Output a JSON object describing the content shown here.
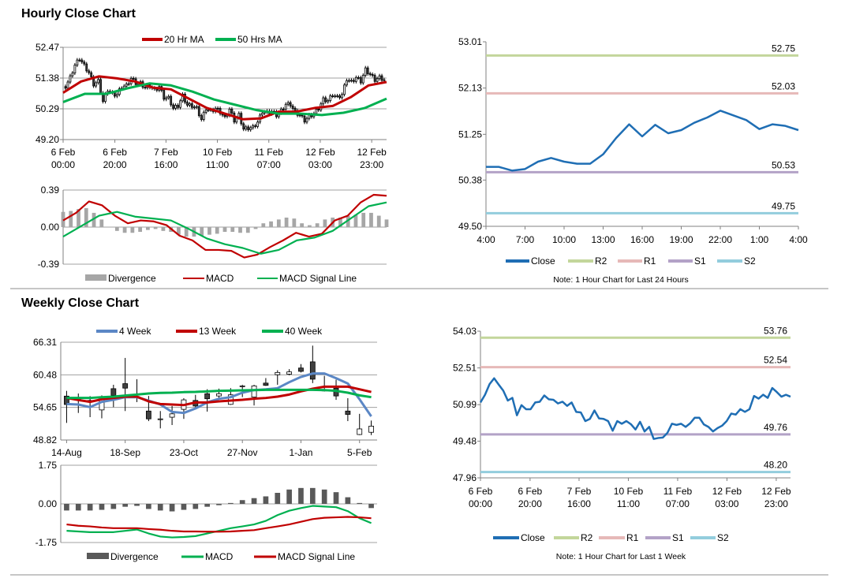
{
  "sections": {
    "hourly_title": "Hourly Close Chart",
    "weekly_title": "Weekly Close Chart"
  },
  "colors": {
    "ma20": "#c00000",
    "ma50": "#00b050",
    "macd_red": "#c00000",
    "macd_green": "#00b050",
    "divergence_light": "#a6a6a6",
    "divergence_dark": "#595959",
    "week4": "#5b87c5",
    "close": "#1f6eb4",
    "R2": "#c3d69b",
    "R1": "#e6b9b8",
    "S1": "#b3a2c7",
    "S2": "#93cddd",
    "grid": "#a0a0a0",
    "candle_down": "#404040",
    "candle_up": "#ffffff"
  },
  "chart_data": [
    {
      "id": "hourly_candles",
      "type": "candlestick",
      "legend": [
        "20 Hr MA",
        "50 Hrs MA"
      ],
      "legend_placement": "top",
      "grid": true,
      "ylim": [
        49.2,
        52.47
      ],
      "yticks": [
        "52.47",
        "51.38",
        "50.29",
        "49.20"
      ],
      "xtick_labels": [
        [
          "6 Feb",
          "00:00"
        ],
        [
          "6 Feb",
          "20:00"
        ],
        [
          "7 Feb",
          "16:00"
        ],
        [
          "10 Feb",
          "11:00"
        ],
        [
          "11 Feb",
          "07:00"
        ],
        [
          "12 Feb",
          "03:00"
        ],
        [
          "12 Feb",
          "23:00"
        ]
      ],
      "close": [
        51.08,
        51.4,
        51.84,
        52.08,
        51.82,
        51.57,
        51.16,
        51.27,
        50.55,
        50.97,
        50.8,
        50.8,
        51.08,
        51.11,
        51.37,
        51.21,
        51.19,
        51.04,
        51.11,
        50.94,
        51.08,
        50.69,
        50.67,
        50.31,
        50.4,
        50.75,
        50.42,
        50.4,
        50.31,
        49.91,
        50.31,
        50.2,
        50.31,
        50.18,
        49.96,
        50.28,
        49.88,
        50.07,
        49.57,
        49.61,
        49.63,
        49.82,
        50.2,
        50.15,
        50.2,
        50.07,
        50.22,
        50.45,
        50.45,
        50.17,
        50.07,
        49.88,
        50.02,
        50.12,
        50.31,
        50.62,
        50.58,
        50.8,
        50.69,
        50.8,
        51.35,
        51.24,
        51.4,
        51.27,
        51.68,
        51.51,
        51.32,
        51.4,
        51.32
      ],
      "series": [
        {
          "name": "20 Hr MA",
          "values": [
            50.86,
            51.26,
            51.44,
            51.37,
            51.26,
            51.04,
            50.98,
            50.65,
            50.32,
            50.12,
            49.92,
            49.95,
            50.19,
            50.19,
            50.32,
            50.39,
            50.7,
            51.12,
            51.24
          ]
        },
        {
          "name": "50 Hrs MA",
          "values": [
            50.53,
            50.82,
            50.82,
            51.02,
            51.19,
            51.12,
            50.9,
            50.62,
            50.43,
            50.24,
            50.12,
            50.12,
            50.07,
            50.15,
            50.32,
            50.65
          ]
        }
      ]
    },
    {
      "id": "hourly_macd",
      "type": "line+bar",
      "legend": [
        "Divergence",
        "MACD",
        "MACD Signal Line"
      ],
      "legend_placement": "bottom",
      "grid": true,
      "ylim": [
        -0.39,
        0.39
      ],
      "yticks": [
        "0.39",
        "0.00",
        "-0.39"
      ],
      "divergence": [
        0.16,
        0.17,
        0.19,
        0.2,
        0.15,
        0.08,
        0.0,
        -0.04,
        -0.06,
        -0.06,
        -0.05,
        -0.03,
        -0.02,
        -0.04,
        -0.05,
        -0.08,
        -0.1,
        -0.1,
        -0.09,
        -0.08,
        -0.07,
        -0.05,
        -0.05,
        -0.06,
        -0.06,
        -0.02,
        0.04,
        0.06,
        0.08,
        0.1,
        0.09,
        0.04,
        0.02,
        0.04,
        0.08,
        0.1,
        0.1,
        0.12,
        0.13,
        0.15,
        0.15,
        0.12,
        0.08
      ],
      "series": [
        {
          "name": "MACD",
          "values": [
            0.07,
            0.15,
            0.27,
            0.23,
            0.12,
            0.04,
            0.07,
            0.06,
            0.02,
            -0.09,
            -0.14,
            -0.24,
            -0.24,
            -0.25,
            -0.32,
            -0.29,
            -0.21,
            -0.14,
            -0.06,
            -0.1,
            -0.07,
            0.07,
            0.12,
            0.26,
            0.34,
            0.33
          ]
        },
        {
          "name": "MACD Signal Line",
          "values": [
            -0.1,
            0.01,
            0.12,
            0.16,
            0.11,
            0.09,
            0.07,
            -0.02,
            -0.12,
            -0.18,
            -0.22,
            -0.28,
            -0.24,
            -0.14,
            -0.11,
            -0.04,
            0.09,
            0.22,
            0.26
          ]
        }
      ]
    },
    {
      "id": "day_levels",
      "type": "line",
      "legend": [
        "Close",
        "R2",
        "R1",
        "S1",
        "S2"
      ],
      "legend_placement": "bottom",
      "grid": false,
      "note": "Note: 1 Hour Chart for Last 24 Hours",
      "ylim": [
        49.5,
        53.01
      ],
      "yticks": [
        "53.01",
        "52.13",
        "51.25",
        "50.38",
        "49.50"
      ],
      "xtick_labels": [
        "4:00",
        "7:00",
        "10:00",
        "13:00",
        "16:00",
        "19:00",
        "22:00",
        "1:00",
        "4:00"
      ],
      "close": [
        50.63,
        50.63,
        50.56,
        50.59,
        50.73,
        50.8,
        50.73,
        50.69,
        50.69,
        50.87,
        51.18,
        51.44,
        51.21,
        51.43,
        51.27,
        51.33,
        51.47,
        51.57,
        51.7,
        51.61,
        51.52,
        51.35,
        51.44,
        51.41,
        51.33
      ],
      "levels": [
        {
          "name": "R2",
          "value": "52.75"
        },
        {
          "name": "R1",
          "value": "52.03"
        },
        {
          "name": "S1",
          "value": "50.53"
        },
        {
          "name": "S2",
          "value": "49.75"
        }
      ]
    },
    {
      "id": "weekly_candles",
      "type": "candlestick",
      "legend": [
        "4 Week",
        "13 Week",
        "40 Week"
      ],
      "legend_placement": "top",
      "grid": true,
      "ylim": [
        48.82,
        66.31
      ],
      "yticks": [
        "66.31",
        "60.48",
        "54.65",
        "48.82"
      ],
      "xtick_labels": [
        {
          "label": "14-Aug",
          "index": 0
        },
        {
          "label": "18-Sep",
          "index": 5
        },
        {
          "label": "23-Oct",
          "index": 10
        },
        {
          "label": "27-Nov",
          "index": 15
        },
        {
          "label": "1-Jan",
          "index": 20
        },
        {
          "label": "5-Feb",
          "index": 25
        }
      ],
      "ohlc": [
        [
          56.67,
          57.61,
          51.88,
          55.17
        ],
        [
          56.2,
          57.14,
          53.66,
          56.0
        ],
        [
          55.9,
          56.67,
          52.91,
          55.6
        ],
        [
          54.2,
          56.8,
          52.7,
          56.2
        ],
        [
          58.0,
          58.7,
          54.7,
          56.8
        ],
        [
          58.9,
          63.5,
          54.0,
          58.1
        ],
        [
          56.6,
          59.7,
          55.6,
          56.5
        ],
        [
          54.0,
          56.7,
          52.2,
          52.6
        ],
        [
          52.6,
          54.0,
          50.9,
          52.6
        ],
        [
          52.9,
          54.9,
          51.5,
          53.5
        ],
        [
          54.3,
          56.3,
          52.6,
          56.0
        ],
        [
          55.9,
          56.9,
          54.5,
          54.9
        ],
        [
          57.1,
          57.9,
          53.9,
          56.2
        ],
        [
          56.7,
          58.0,
          56.3,
          57.1
        ],
        [
          55.2,
          58.1,
          55.1,
          56.9
        ],
        [
          58.4,
          58.7,
          56.5,
          58.5
        ],
        [
          56.5,
          58.7,
          55.0,
          58.5
        ],
        [
          59.0,
          59.9,
          58.5,
          58.6
        ],
        [
          60.5,
          61.3,
          58.7,
          60.9
        ],
        [
          60.6,
          61.5,
          60.4,
          61.0
        ],
        [
          61.7,
          62.4,
          60.9,
          61.1
        ],
        [
          62.8,
          65.7,
          59.0,
          59.7
        ],
        [
          57.8,
          60.3,
          57.5,
          57.6
        ],
        [
          58.1,
          59.6,
          56.0,
          56.7
        ],
        [
          54.0,
          56.3,
          52.2,
          53.4
        ],
        [
          49.8,
          53.5,
          49.7,
          50.8
        ],
        [
          50.2,
          52.3,
          49.7,
          51.3
        ]
      ],
      "series": [
        {
          "name": "4 Week",
          "values": [
            55.26,
            55.17,
            54.7,
            55.64,
            56.01,
            56.48,
            56.48,
            55.87,
            55.17,
            53.85,
            53.66,
            54.46,
            55.54,
            56.2,
            56.48,
            57.28,
            57.75,
            57.89,
            58.08,
            59.16,
            60.1,
            60.72,
            60.72,
            59.87,
            58.93,
            56.11,
            53.05
          ]
        },
        {
          "name": "13 Week",
          "values": [
            56.34,
            55.97,
            55.64,
            56.11,
            56.34,
            56.58,
            56.58,
            55.73,
            55.26,
            55.17,
            55.07,
            55.54,
            55.54,
            55.73,
            55.87,
            56.01,
            56.2,
            56.34,
            56.58,
            56.95,
            57.52,
            57.99,
            58.36,
            58.36,
            58.36,
            57.89,
            57.42
          ]
        },
        {
          "name": "40 Week",
          "values": [
            56.34,
            56.34,
            56.34,
            56.48,
            56.58,
            56.77,
            56.95,
            57.14,
            57.24,
            57.28,
            57.38,
            57.42,
            57.52,
            57.61,
            57.66,
            57.7,
            57.75,
            57.8,
            57.8,
            57.8,
            57.8,
            57.8,
            57.75,
            57.61,
            57.28,
            56.81,
            56.48
          ]
        }
      ]
    },
    {
      "id": "weekly_macd",
      "type": "line+bar",
      "legend": [
        "Divergence",
        "MACD",
        "MACD Signal Line"
      ],
      "legend_placement": "bottom",
      "grid": true,
      "ylim": [
        -1.75,
        1.75
      ],
      "yticks": [
        "1.75",
        "0.00",
        "-1.75"
      ],
      "divergence": [
        -0.3,
        -0.3,
        -0.3,
        -0.27,
        -0.23,
        -0.13,
        -0.09,
        -0.23,
        -0.3,
        -0.34,
        -0.27,
        -0.23,
        -0.13,
        -0.06,
        0.04,
        0.17,
        0.26,
        0.34,
        0.5,
        0.65,
        0.72,
        0.72,
        0.65,
        0.53,
        0.3,
        0.04,
        -0.19
      ],
      "series": [
        {
          "name": "MACD",
          "values": [
            -1.22,
            -1.25,
            -1.28,
            -1.28,
            -1.28,
            -1.22,
            -1.16,
            -1.34,
            -1.48,
            -1.52,
            -1.5,
            -1.46,
            -1.34,
            -1.22,
            -1.1,
            -1.02,
            -0.93,
            -0.77,
            -0.51,
            -0.31,
            -0.19,
            -0.09,
            -0.12,
            -0.15,
            -0.33,
            -0.65,
            -0.87
          ]
        },
        {
          "name": "MACD Signal Line",
          "values": [
            -0.93,
            -0.99,
            -1.02,
            -1.07,
            -1.1,
            -1.1,
            -1.1,
            -1.14,
            -1.17,
            -1.22,
            -1.25,
            -1.25,
            -1.26,
            -1.26,
            -1.25,
            -1.22,
            -1.19,
            -1.1,
            -1.02,
            -0.93,
            -0.81,
            -0.69,
            -0.63,
            -0.61,
            -0.59,
            -0.61,
            -0.65
          ]
        }
      ]
    },
    {
      "id": "week_levels",
      "type": "line",
      "legend": [
        "Close",
        "R2",
        "R1",
        "S1",
        "S2"
      ],
      "legend_placement": "bottom",
      "grid": false,
      "note": "Note: 1 Hour Chart for Last 1 Week",
      "ylim": [
        47.96,
        54.03
      ],
      "yticks": [
        "54.03",
        "52.51",
        "50.99",
        "49.48",
        "47.96"
      ],
      "xtick_labels": [
        [
          "6 Feb",
          "00:00"
        ],
        [
          "6 Feb",
          "20:00"
        ],
        [
          "7 Feb",
          "16:00"
        ],
        [
          "10 Feb",
          "11:00"
        ],
        [
          "11 Feb",
          "07:00"
        ],
        [
          "12 Feb",
          "03:00"
        ],
        [
          "12 Feb",
          "23:00"
        ]
      ],
      "close": [
        51.08,
        51.4,
        51.84,
        52.08,
        51.82,
        51.57,
        51.16,
        51.27,
        50.55,
        50.97,
        50.8,
        50.8,
        51.08,
        51.11,
        51.37,
        51.21,
        51.19,
        51.04,
        51.11,
        50.94,
        51.08,
        50.69,
        50.67,
        50.31,
        50.4,
        50.75,
        50.42,
        50.4,
        50.31,
        49.91,
        50.31,
        50.2,
        50.31,
        50.18,
        49.96,
        50.28,
        49.88,
        50.07,
        49.57,
        49.61,
        49.63,
        49.82,
        50.2,
        50.15,
        50.2,
        50.07,
        50.22,
        50.45,
        50.45,
        50.17,
        50.07,
        49.88,
        50.02,
        50.12,
        50.31,
        50.62,
        50.58,
        50.8,
        50.69,
        50.8,
        51.35,
        51.24,
        51.4,
        51.27,
        51.68,
        51.51,
        51.32,
        51.4,
        51.32
      ],
      "levels": [
        {
          "name": "R2",
          "value": "53.76"
        },
        {
          "name": "R1",
          "value": "52.54"
        },
        {
          "name": "S1",
          "value": "49.76"
        },
        {
          "name": "S2",
          "value": "48.20"
        }
      ]
    }
  ]
}
